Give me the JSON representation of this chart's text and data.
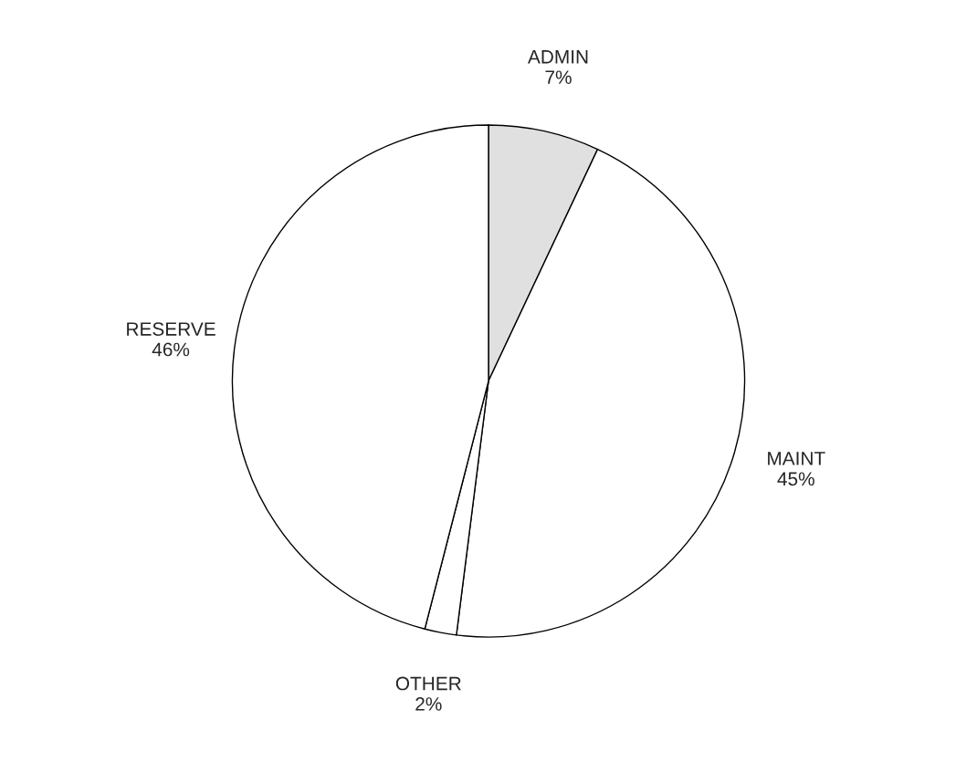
{
  "chart_data": {
    "type": "pie",
    "categories": [
      "ADMIN",
      "MAINT",
      "OTHER",
      "RESERVE"
    ],
    "values": [
      7,
      45,
      2,
      46
    ],
    "value_labels": [
      "7%",
      "45%",
      "2%",
      "46%"
    ],
    "colors": [
      "#e0e0e0",
      "#ffffff",
      "#ffffff",
      "#ffffff"
    ],
    "legend": false
  }
}
